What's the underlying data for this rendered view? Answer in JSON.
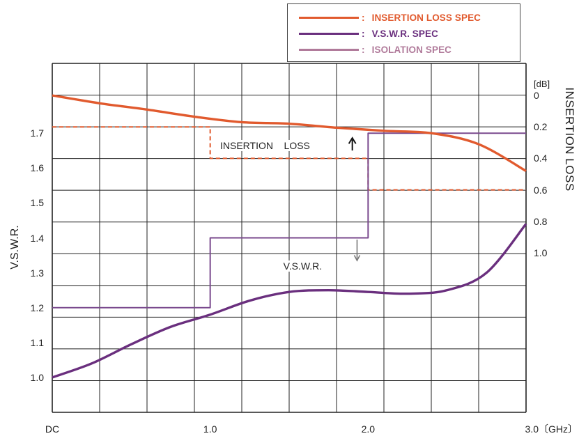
{
  "legend": {
    "items": [
      {
        "label": "INSERTION LOSS SPEC",
        "color": "#e15a2e"
      },
      {
        "label": "V.S.W.R. SPEC",
        "color": "#6a2f7e"
      },
      {
        "label": "ISOLATION SPEC",
        "color": "#b07a9a"
      }
    ],
    "separator": ":"
  },
  "chart_data": {
    "type": "line",
    "x_range": [
      0,
      3.0
    ],
    "x_ticks": [
      {
        "value": 0,
        "label": "DC"
      },
      {
        "value": 1.0,
        "label": "1.0"
      },
      {
        "value": 2.0,
        "label": "2.0"
      },
      {
        "value": 3.0,
        "label": "3.0〔GHz〕"
      }
    ],
    "ylabel_left": "V.S.W.R.",
    "y_left_range": [
      0.9,
      1.9
    ],
    "y_left_ticks": [
      "1.0",
      "1.1",
      "1.2",
      "1.3",
      "1.4",
      "1.5",
      "1.6",
      "1.7"
    ],
    "ylabel_right": "INSERTION  LOSS",
    "y_right_unit": "[dB]",
    "y_right_range": [
      0,
      1.0
    ],
    "y_right_ticks": [
      "0",
      "0.2",
      "0.4",
      "0.6",
      "0.8",
      "1.0"
    ],
    "grid": true,
    "series": [
      {
        "name": "INSERTION LOSS SPEC",
        "axis": "right",
        "style": "dashed-step",
        "color": "#e15a2e",
        "x": [
          0,
          1.0,
          1.0,
          2.0,
          2.0,
          3.0
        ],
        "y": [
          0.2,
          0.2,
          0.4,
          0.4,
          0.6,
          0.6
        ]
      },
      {
        "name": "V.S.W.R. SPEC",
        "axis": "left",
        "style": "step",
        "color": "#7a4a8e",
        "x": [
          0,
          1.0,
          1.0,
          2.0,
          2.0,
          3.0
        ],
        "y": [
          1.2,
          1.2,
          1.4,
          1.4,
          1.7,
          1.7
        ]
      },
      {
        "name": "INSERTION LOSS",
        "axis": "right",
        "style": "line",
        "color": "#e15a2e",
        "x": [
          0,
          0.3,
          0.6,
          0.9,
          1.2,
          1.5,
          1.8,
          2.1,
          2.4,
          2.7,
          3.0
        ],
        "y": [
          0.0,
          0.05,
          0.09,
          0.135,
          0.17,
          0.18,
          0.205,
          0.225,
          0.24,
          0.31,
          0.48
        ]
      },
      {
        "name": "V.S.W.R.",
        "axis": "left",
        "style": "line",
        "color": "#6a2f7e",
        "x": [
          0,
          0.25,
          0.5,
          0.75,
          1.0,
          1.25,
          1.5,
          1.75,
          2.0,
          2.25,
          2.5,
          2.75,
          3.0
        ],
        "y": [
          1.0,
          1.04,
          1.095,
          1.145,
          1.18,
          1.22,
          1.245,
          1.25,
          1.245,
          1.24,
          1.25,
          1.3,
          1.44
        ]
      }
    ],
    "annotations": [
      {
        "text": "INSERTION    LOSS",
        "x": 1.05,
        "y_right": 0.32
      },
      {
        "text": "V.S.W.R.",
        "x": 1.45,
        "y_left": 1.32
      }
    ]
  }
}
